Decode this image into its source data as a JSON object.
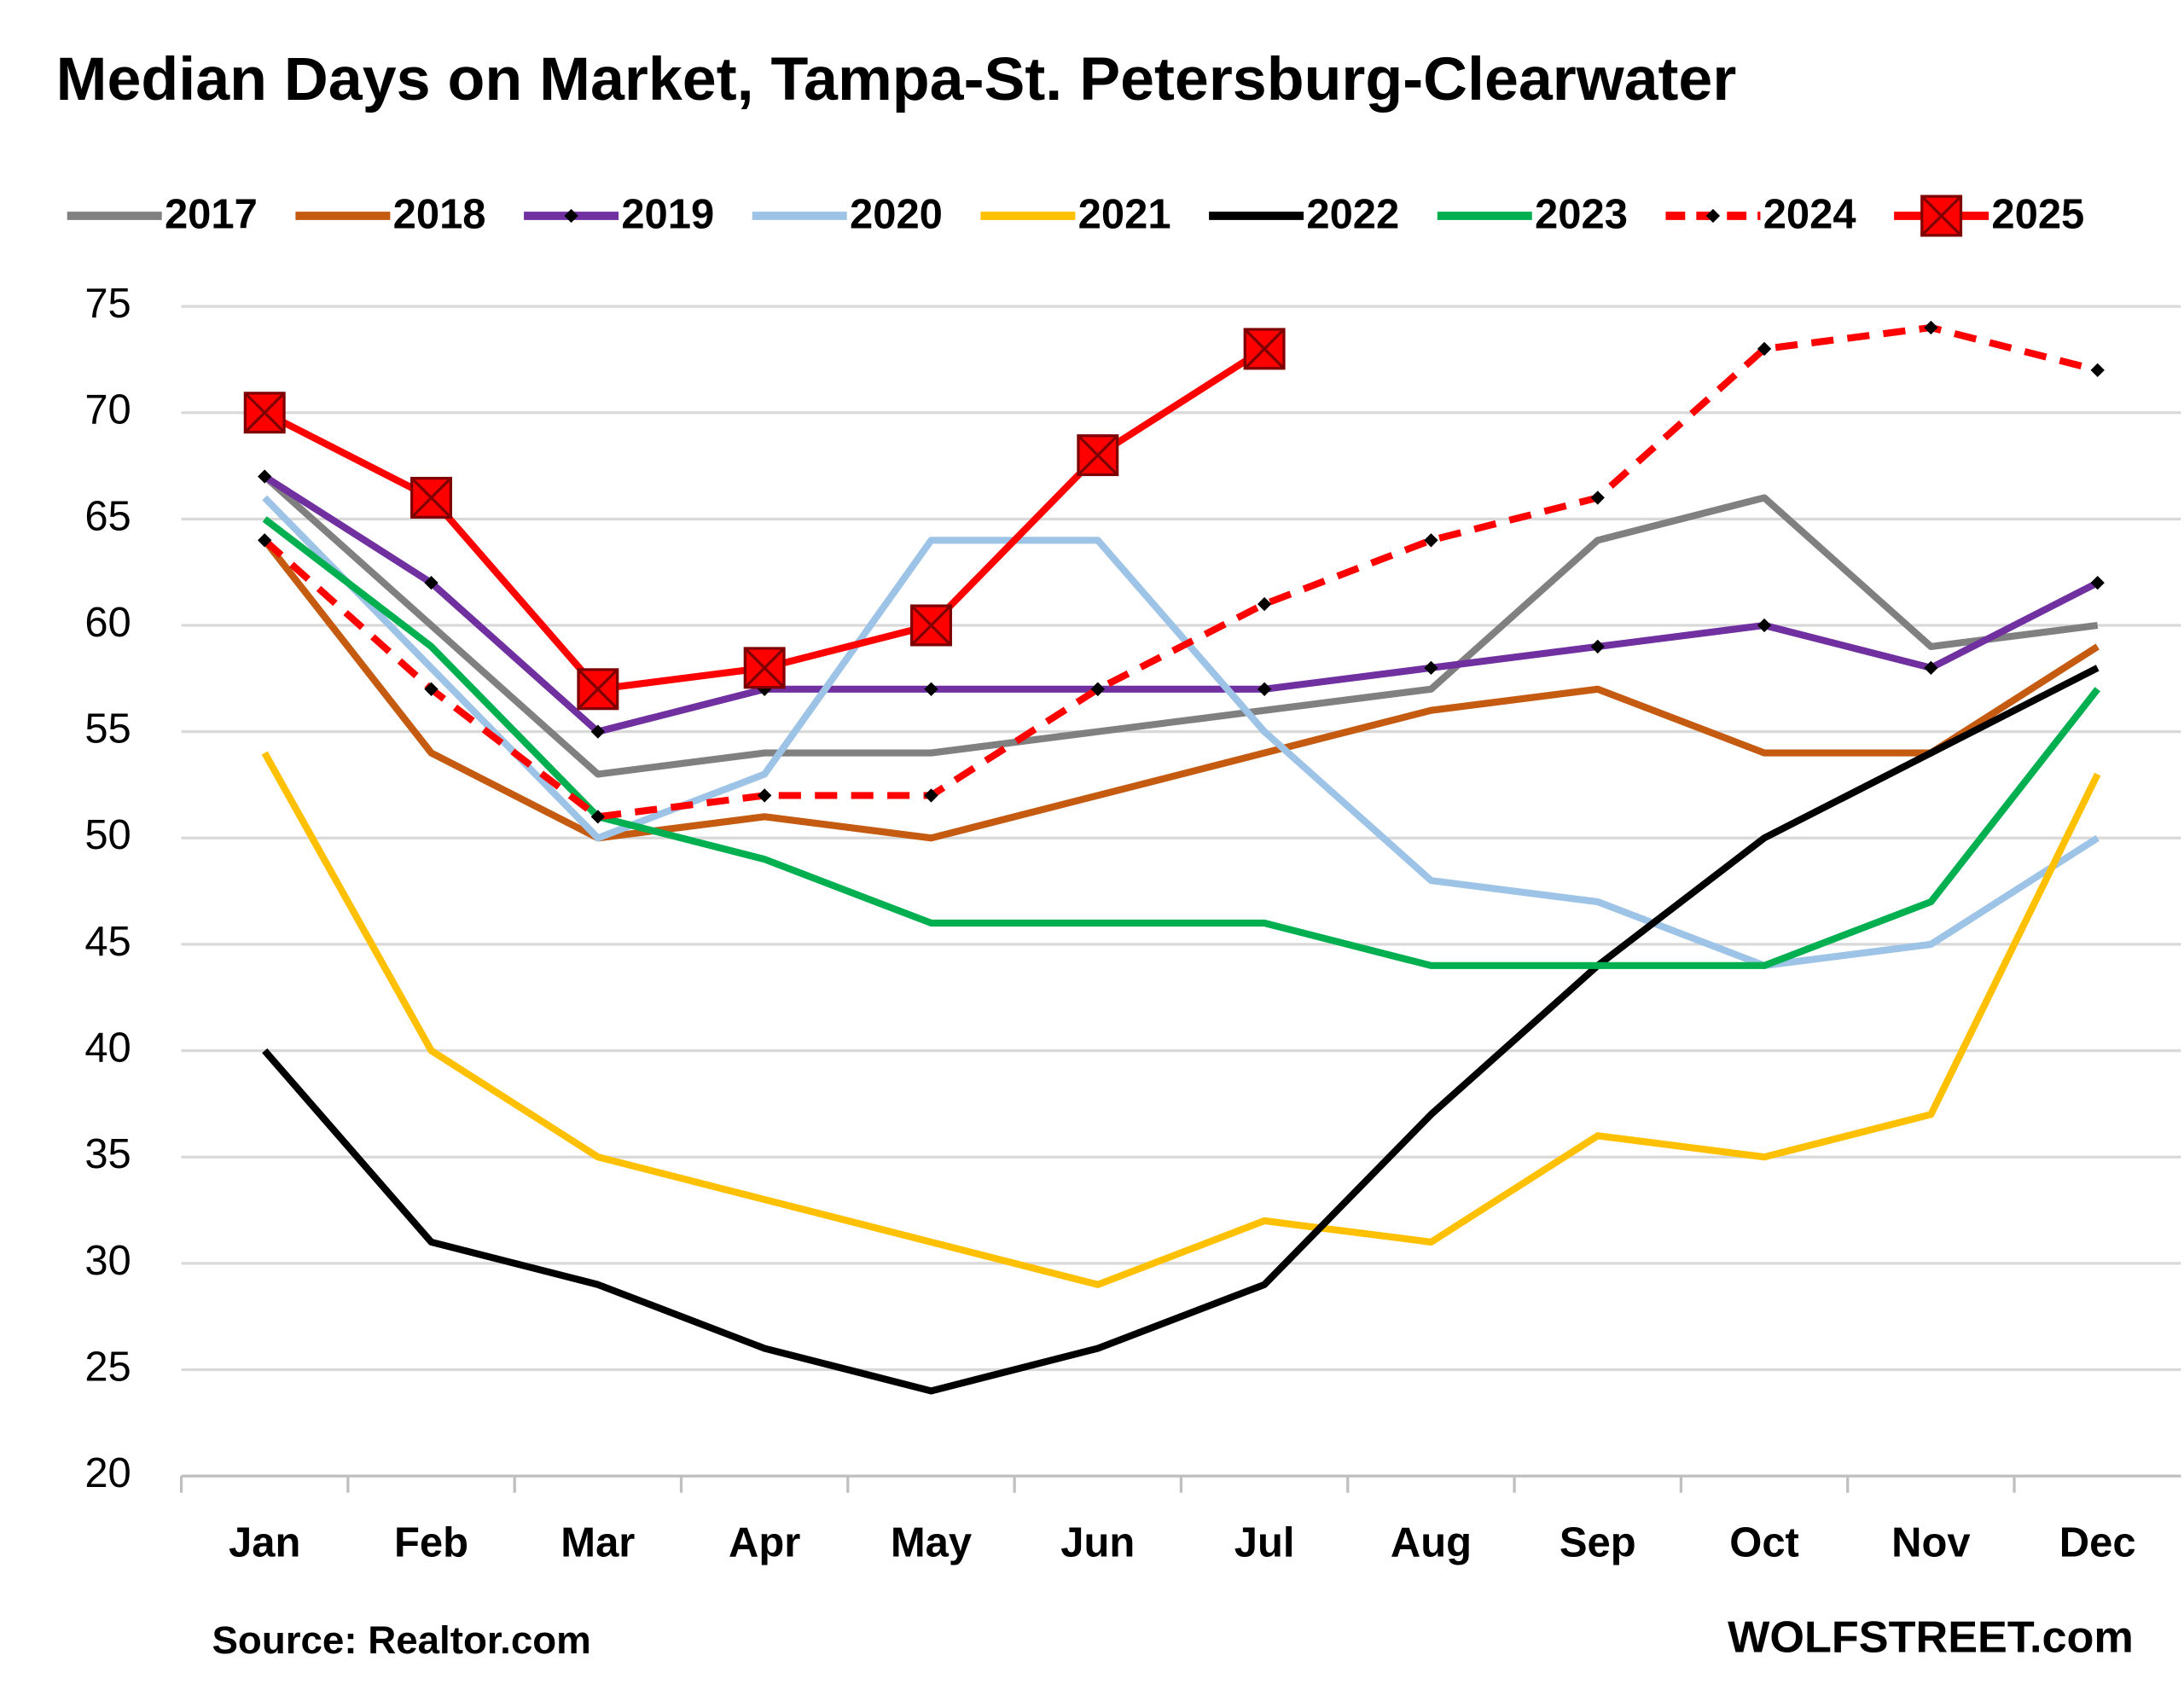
{
  "chart_data": {
    "type": "line",
    "title": "Median Days on Market, Tampa-St. Petersburg-Clearwater",
    "source": "Source: Realtor.com",
    "credit": "WOLFSTREET.com",
    "categories": [
      "Jan",
      "Feb",
      "Mar",
      "Apr",
      "May",
      "Jun",
      "Jul",
      "Aug",
      "Sep",
      "Oct",
      "Nov",
      "Dec"
    ],
    "ylim": [
      20,
      75
    ],
    "yticks": [
      20,
      25,
      30,
      35,
      40,
      45,
      50,
      55,
      60,
      65,
      70,
      75
    ],
    "grid": true,
    "legend": "top",
    "series": [
      {
        "name": "2017",
        "color": "#808080",
        "values": [
          67,
          60,
          53,
          54,
          54,
          55,
          56,
          57,
          64,
          66,
          59,
          60
        ]
      },
      {
        "name": "2018",
        "color": "#c55a11",
        "values": [
          64,
          54,
          50,
          51,
          50,
          52,
          54,
          56,
          57,
          54,
          54,
          59
        ]
      },
      {
        "name": "2019",
        "color": "#7030a0",
        "marker": "diamond",
        "values": [
          67,
          62,
          55,
          57,
          57,
          57,
          57,
          58,
          59,
          60,
          58,
          62
        ]
      },
      {
        "name": "2020",
        "color": "#9dc3e6",
        "values": [
          66,
          58,
          50,
          53,
          64,
          64,
          55,
          48,
          47,
          44,
          45,
          50
        ]
      },
      {
        "name": "2021",
        "color": "#ffc000",
        "values": [
          54,
          40,
          35,
          33,
          31,
          29,
          32,
          31,
          36,
          35,
          37,
          53
        ]
      },
      {
        "name": "2022",
        "color": "#000000",
        "values": [
          40,
          31,
          29,
          26,
          24,
          26,
          29,
          37,
          44,
          50,
          54,
          58
        ]
      },
      {
        "name": "2023",
        "color": "#00b050",
        "values": [
          65,
          59,
          51,
          49,
          46,
          46,
          46,
          44,
          44,
          44,
          47,
          57
        ]
      },
      {
        "name": "2024",
        "color": "#ff0000",
        "dashed": true,
        "marker": "diamond",
        "values": [
          64,
          57,
          51,
          52,
          52,
          57,
          61,
          64,
          66,
          73,
          74,
          72
        ]
      },
      {
        "name": "2025",
        "color": "#ff0000",
        "marker": "square",
        "values": [
          70,
          66,
          57,
          58,
          60,
          68,
          73,
          null,
          null,
          null,
          null,
          null
        ]
      }
    ]
  }
}
